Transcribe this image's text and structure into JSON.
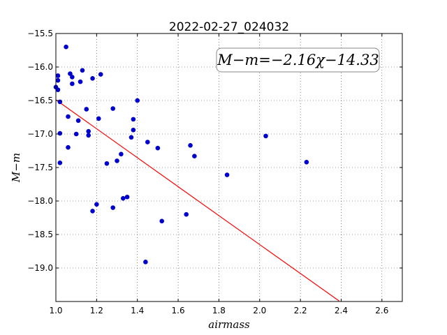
{
  "chart_data": {
    "type": "scatter",
    "title": "2022-02-27_024032",
    "xlabel": "airmass",
    "ylabel": "M−m",
    "xlim": [
      1.0,
      2.7
    ],
    "ylim": [
      -15.5,
      -19.5
    ],
    "y_inverted": true,
    "grid": true,
    "x_ticks": [
      1.0,
      1.2,
      1.4,
      1.6,
      1.8,
      2.0,
      2.2,
      2.4,
      2.6
    ],
    "x_tick_labels": [
      "1.0",
      "1.2",
      "1.4",
      "1.6",
      "1.8",
      "2.0",
      "2.2",
      "2.4",
      "2.6"
    ],
    "y_ticks": [
      -15.5,
      -16.0,
      -16.5,
      -17.0,
      -17.5,
      -18.0,
      -18.5,
      -19.0
    ],
    "y_tick_labels": [
      "−15.5",
      "−16.0",
      "−16.5",
      "−17.0",
      "−17.5",
      "−18.0",
      "−18.5",
      "−19.0"
    ],
    "annotation": "M−m=−2.16χ−14.33",
    "fit": {
      "slope": -2.16,
      "intercept": -14.33,
      "x_range": [
        1.0,
        2.39
      ],
      "color": "#ff0000"
    },
    "points_color": "#0000cc",
    "points": [
      [
        1.0,
        -16.3
      ],
      [
        1.01,
        -16.13
      ],
      [
        1.01,
        -16.2
      ],
      [
        1.01,
        -16.34
      ],
      [
        1.02,
        -16.52
      ],
      [
        1.02,
        -16.99
      ],
      [
        1.02,
        -17.43
      ],
      [
        1.05,
        -15.7
      ],
      [
        1.06,
        -16.74
      ],
      [
        1.06,
        -17.2
      ],
      [
        1.07,
        -16.1
      ],
      [
        1.08,
        -16.15
      ],
      [
        1.08,
        -16.25
      ],
      [
        1.1,
        -17.0
      ],
      [
        1.11,
        -16.8
      ],
      [
        1.12,
        -16.22
      ],
      [
        1.13,
        -16.05
      ],
      [
        1.15,
        -16.63
      ],
      [
        1.16,
        -17.02
      ],
      [
        1.16,
        -16.96
      ],
      [
        1.18,
        -16.17
      ],
      [
        1.18,
        -18.15
      ],
      [
        1.2,
        -18.05
      ],
      [
        1.21,
        -16.77
      ],
      [
        1.22,
        -16.11
      ],
      [
        1.25,
        -17.44
      ],
      [
        1.28,
        -18.1
      ],
      [
        1.28,
        -16.62
      ],
      [
        1.3,
        -17.4
      ],
      [
        1.32,
        -17.3
      ],
      [
        1.33,
        -17.96
      ],
      [
        1.35,
        -17.94
      ],
      [
        1.37,
        -17.05
      ],
      [
        1.38,
        -16.78
      ],
      [
        1.38,
        -16.94
      ],
      [
        1.4,
        -16.5
      ],
      [
        1.44,
        -18.91
      ],
      [
        1.45,
        -17.12
      ],
      [
        1.5,
        -17.21
      ],
      [
        1.52,
        -18.3
      ],
      [
        1.64,
        -18.2
      ],
      [
        1.66,
        -17.17
      ],
      [
        1.68,
        -17.33
      ],
      [
        1.84,
        -17.61
      ],
      [
        2.03,
        -17.03
      ],
      [
        2.23,
        -17.42
      ]
    ]
  }
}
